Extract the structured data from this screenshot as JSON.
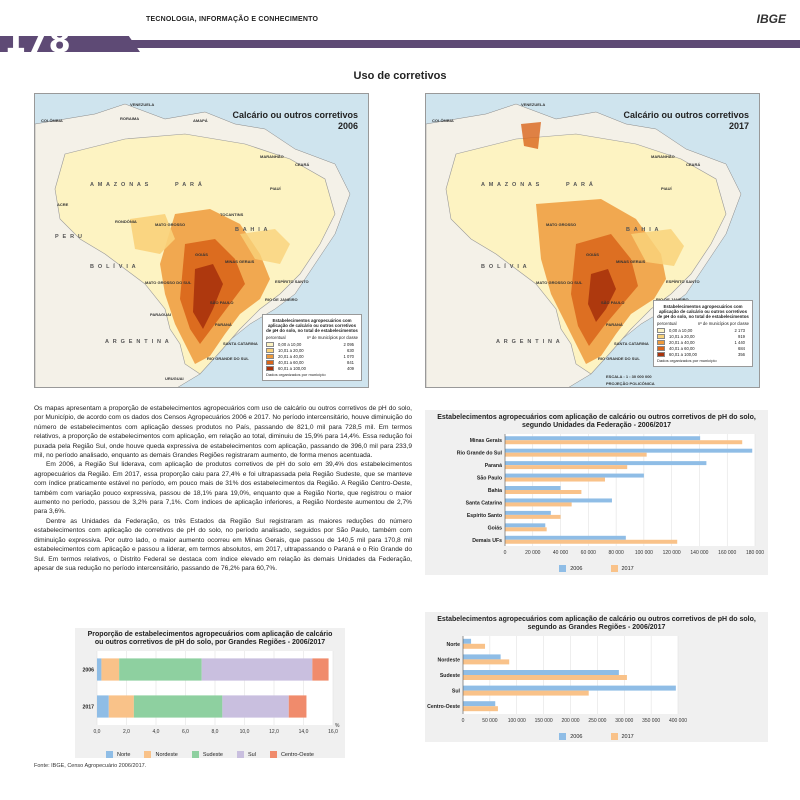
{
  "header": {
    "section": "TECNOLOGIA, INFORMAÇÃO E CONHECIMENTO",
    "logo": "IBGE",
    "page_number": "178"
  },
  "title": "Uso de corretivos",
  "maps": [
    {
      "title_line1": "Calcário ou outros corretivos",
      "title_line2": "2006",
      "legend_title": "Estabelecimentos agropecuários com aplicação de calcário ou outros corretivos de pH do solo, no total de estabelecimentos",
      "legend_col1": "percentual",
      "legend_col2": "nº de municípios por classe",
      "classes": [
        {
          "label": "0,00 a 10,00",
          "count": "2 095",
          "color": "#fdf3c2"
        },
        {
          "label": "10,01 a 20,00",
          "count": "630",
          "color": "#f9d27a"
        },
        {
          "label": "20,01 a 40,00",
          "count": "1 070",
          "color": "#ee9a3c"
        },
        {
          "label": "40,01 a 60,00",
          "count": "841",
          "color": "#d9651a"
        },
        {
          "label": "60,01 a 100,00",
          "count": "409",
          "color": "#a9330c"
        }
      ],
      "legend_foot": "Dados organizados por município"
    },
    {
      "title_line1": "Calcário ou outros corretivos",
      "title_line2": "2017",
      "legend_title": "Estabelecimentos agropecuários com aplicação de calcário ou outros corretivos de pH do solo, no total de estabelecimentos",
      "legend_col1": "percentual",
      "legend_col2": "nº de municípios por classe",
      "classes": [
        {
          "label": "0,00 a 10,00",
          "count": "2 173",
          "color": "#fdf3c2"
        },
        {
          "label": "10,01 a 20,00",
          "count": "919",
          "color": "#f9d27a"
        },
        {
          "label": "20,01 a 40,00",
          "count": "1 440",
          "color": "#ee9a3c"
        },
        {
          "label": "40,01 a 60,00",
          "count": "684",
          "color": "#d9651a"
        },
        {
          "label": "60,01 a 100,00",
          "count": "356",
          "color": "#a9330c"
        }
      ],
      "legend_foot": "Dados organizados por município",
      "scale_label": "ESCALA : 1 : 30 000 000",
      "projection": "PROJEÇÃO POLICÔNICA"
    }
  ],
  "map_labels": {
    "amazonas": "A M A Z O N A S",
    "para": "P A R Á",
    "bahia": "B A H I A",
    "bolivia": "B O L Í V I A",
    "argentina": "A R G E N T I N A",
    "colombia": "COLÔMBIA",
    "venezuela": "VENEZUELA",
    "peru": "P E R U",
    "mato_grosso": "MATO GROSSO",
    "minas_gerais": "MINAS GERAIS",
    "goias": "GOIÁS",
    "parana": "PARANÁ",
    "sao_paulo": "SÃO PAULO",
    "rs": "RIO GRANDE DO SUL",
    "sc": "SANTA CATARINA",
    "rondonia": "RONDÔNIA",
    "acre": "ACRE",
    "roraima": "RORAIMA",
    "amapa": "AMAPÁ",
    "maranhao": "MARANHÃO",
    "piaui": "PIAUÍ",
    "ceara": "CEARÁ",
    "tocantins": "TOCANTINS",
    "ms": "MATO GROSSO DO SUL",
    "rj": "RIO DE JANEIRO",
    "es": "ESPÍRITO SANTO",
    "paraguai": "PARAGUAI",
    "uruguai": "URUGUAI",
    "atlantico": "OCEANO ATLÂNTICO"
  },
  "body_paragraphs": [
    "Os mapas apresentam a proporção de estabelecimentos agropecuários com uso de calcário ou outros corretivos de pH do solo, por Município, de acordo com os dados dos Censos Agropecuários 2006 e 2017. No período intercensitário, houve diminuição do número de estabelecimentos com aplicação desses produtos no País, passando de 821,0 mil para 728,5 mil. Em termos relativos, a proporção de estabelecimentos com aplicação, em relação ao total, diminuiu de 15,9% para 14,4%. Essa redução foi puxada pela Região Sul, onde houve queda expressiva de estabelecimentos com aplicação, passando de 396,0 mil para 233,9 mil, no período analisado, enquanto as demais Grandes Regiões registraram aumento, de forma menos acentuada.",
    "Em 2006, a Região Sul liderava, com aplicação de produtos corretivos de pH do solo em 39,4% dos estabelecimentos agropecuários da Região. Em 2017, essa proporção caiu para 27,4% e foi ultrapassada pela Região Sudeste, que se manteve com índice praticamente estável no período, em pouco mais de 31% dos estabelecimentos da Região. A Região Centro-Oeste, também com variação pouco expressiva, passou de 18,1% para 19,0%, enquanto que a Região Norte, que registrou o maior aumento no período, passou de 3,2% para 7,1%. Com índices de aplicação inferiores, a Região Nordeste aumentou de 2,7% para 3,6%.",
    "Dentre as Unidades da Federação, os três Estados da Região Sul registraram as maiores reduções do número estabelecimentos com aplicação de corretivos de pH do solo, no período analisado, seguidos por São Paulo, também com diminuição expressiva. Por outro lado, o maior aumento ocorreu em Minas Gerais, que passou de 140,5 mil para 170,8 mil estabelecimentos com aplicação e passou a liderar, em termos absolutos, em 2017, ultrapassando o Paraná e o Rio Grande do Sul. Em termos relativos, o Distrito Federal se destaca com índice elevado em relação às demais Unidades da Federação, apesar de sua redução no período intercensitário, passando de 76,2% para 60,7%."
  ],
  "charts": {
    "uf": {
      "title": "Estabelecimentos agropecuários com aplicação de calcário ou outros corretivos de pH do solo, segundo Unidades da Federação - 2006/2017",
      "legend_2006": "2006",
      "legend_2017": "2017"
    },
    "regions_abs": {
      "title": "Estabelecimentos agropecuários com aplicação de calcário ou outros corretivos de pH do solo, segundo as Grandes Regiões - 2006/2017",
      "legend_2006": "2006",
      "legend_2017": "2017"
    },
    "proportion": {
      "title": "Proporção de estabelecimentos agropecuários com aplicação de calcário ou outros corretivos de pH do solo, por Grandes Regiões - 2006/2017",
      "unit": "%"
    }
  },
  "chart_data": [
    {
      "type": "bar",
      "orientation": "horizontal",
      "title": "Estabelecimentos agropecuários com aplicação de calcário ou outros corretivos de pH do solo, segundo Unidades da Federação - 2006/2017",
      "categories": [
        "Minas Gerais",
        "Rio Grande do Sul",
        "Paraná",
        "São Paulo",
        "Bahia",
        "Santa Catarina",
        "Espírito Santo",
        "Goiás",
        "Demais UFs"
      ],
      "series": [
        {
          "name": "2006",
          "values": [
            140500,
            178000,
            145000,
            100000,
            40000,
            77000,
            33000,
            29000,
            87000
          ],
          "color": "#8fbde6"
        },
        {
          "name": "2017",
          "values": [
            170800,
            102000,
            88000,
            72000,
            55000,
            48000,
            40000,
            30000,
            124000
          ],
          "color": "#f9c289"
        }
      ],
      "xlim": [
        0,
        180000
      ],
      "xticks": [
        "0",
        "20 000",
        "40 000",
        "60 000",
        "80 000",
        "100 000",
        "120 000",
        "140 000",
        "160 000",
        "180 000"
      ],
      "legend": "bottom"
    },
    {
      "type": "bar",
      "orientation": "horizontal",
      "title": "Estabelecimentos agropecuários com aplicação de calcário ou outros corretivos de pH do solo, segundo as Grandes Regiões - 2006/2017",
      "categories": [
        "Norte",
        "Nordeste",
        "Sudeste",
        "Sul",
        "Centro-Oeste"
      ],
      "series": [
        {
          "name": "2006",
          "values": [
            15000,
            70000,
            290000,
            396000,
            60000
          ],
          "color": "#8fbde6"
        },
        {
          "name": "2017",
          "values": [
            41000,
            86000,
            305000,
            233900,
            65000
          ],
          "color": "#f9c289"
        }
      ],
      "xlim": [
        0,
        400000
      ],
      "xticks": [
        "0",
        "50 000",
        "100 000",
        "150 000",
        "200 000",
        "250 000",
        "300 000",
        "350 000",
        "400 000"
      ],
      "legend": "bottom"
    },
    {
      "type": "bar",
      "orientation": "horizontal",
      "stacked": true,
      "title": "Proporção de estabelecimentos agropecuários com aplicação de calcário ou outros corretivos de pH do solo, por Grandes Regiões - 2006/2017",
      "categories": [
        "2006",
        "2017"
      ],
      "series": [
        {
          "name": "Norte",
          "values": [
            0.3,
            0.8
          ],
          "color": "#8fbde6"
        },
        {
          "name": "Nordeste",
          "values": [
            1.2,
            1.7
          ],
          "color": "#f9c289"
        },
        {
          "name": "Sudeste",
          "values": [
            5.6,
            6.0
          ],
          "color": "#8ed0a0"
        },
        {
          "name": "Sul",
          "values": [
            7.5,
            4.5
          ],
          "color": "#c9bfdf"
        },
        {
          "name": "Centro-Oeste",
          "values": [
            1.1,
            1.2
          ],
          "color": "#f08b6c"
        }
      ],
      "xlim": [
        0,
        16
      ],
      "xticks": [
        "0,0",
        "2,0",
        "4,0",
        "6,0",
        "8,0",
        "10,0",
        "12,0",
        "14,0",
        "16,0"
      ],
      "xlabel": "%",
      "legend": "bottom"
    }
  ],
  "footer": "Fonte: IBGE, Censo Agropecuário 2006/2017."
}
